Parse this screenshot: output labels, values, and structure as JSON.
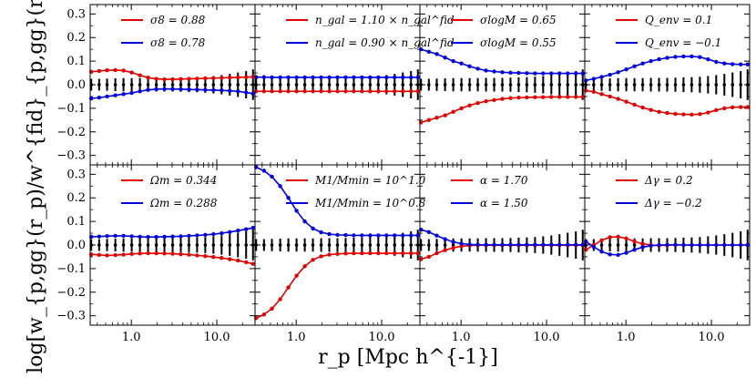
{
  "figure": {
    "ylabel": "log[w_{p,gg}(r_p)/w^{fid}_{p,gg}(r_p)]",
    "xlabel": "r_p [Mpc h^{-1}]"
  },
  "chart_data": {
    "type": "line",
    "layout": "2x4 grid of panels, shared axes",
    "xscale": "log",
    "xlim": [
      0.33,
      28
    ],
    "ylim": [
      -0.34,
      0.34
    ],
    "xticks": [
      1.0,
      10.0
    ],
    "xtick_labels": [
      "1.0",
      "10.0"
    ],
    "yticks": [
      0.3,
      0.2,
      0.1,
      0.0,
      -0.1,
      -0.2,
      -0.3
    ],
    "ytick_labels": [
      "0.3",
      "0.2",
      "0.1",
      "0.0",
      "−0.1",
      "−0.2",
      "−0.3"
    ],
    "colors": {
      "red": "#e00000",
      "blue": "#0000dd",
      "err": "#000000"
    },
    "rp": [
      0.34,
      0.42,
      0.52,
      0.65,
      0.81,
      1.01,
      1.26,
      1.57,
      1.96,
      2.44,
      3.04,
      3.79,
      4.72,
      5.88,
      7.33,
      9.13,
      11.38,
      14.18,
      17.67,
      22.02,
      26.5
    ],
    "errors": [
      0.025,
      0.025,
      0.026,
      0.027,
      0.028,
      0.028,
      0.028,
      0.028,
      0.029,
      0.029,
      0.029,
      0.03,
      0.031,
      0.032,
      0.034,
      0.037,
      0.041,
      0.046,
      0.052,
      0.058,
      0.065
    ],
    "panels": [
      {
        "id": "sigma8",
        "legend": [
          "σ8 = 0.88",
          "σ8 = 0.78"
        ],
        "series": [
          {
            "name": "σ8 = 0.88",
            "color": "red",
            "values": [
              0.055,
              0.058,
              0.061,
              0.062,
              0.06,
              0.052,
              0.04,
              0.03,
              0.025,
              0.023,
              0.023,
              0.024,
              0.025,
              0.026,
              0.027,
              0.028,
              0.029,
              0.03,
              0.031,
              0.032,
              0.033
            ]
          },
          {
            "name": "σ8 = 0.78",
            "color": "blue",
            "values": [
              -0.058,
              -0.055,
              -0.05,
              -0.045,
              -0.04,
              -0.035,
              -0.028,
              -0.022,
              -0.019,
              -0.018,
              -0.018,
              -0.019,
              -0.02,
              -0.021,
              -0.022,
              -0.023,
              -0.024,
              -0.026,
              -0.028,
              -0.033,
              -0.038
            ]
          }
        ]
      },
      {
        "id": "ngal",
        "legend": [
          "n_gal = 1.10 × n_gal^fid",
          "n_gal = 0.90 × n_gal^fid"
        ],
        "series": [
          {
            "name": "n_gal = 1.10 × n_gal^fid",
            "color": "red",
            "values": [
              -0.028,
              -0.028,
              -0.028,
              -0.028,
              -0.028,
              -0.028,
              -0.028,
              -0.028,
              -0.028,
              -0.028,
              -0.028,
              -0.028,
              -0.028,
              -0.028,
              -0.028,
              -0.028,
              -0.028,
              -0.028,
              -0.028,
              -0.028,
              -0.028
            ]
          },
          {
            "name": "n_gal = 0.90 × n_gal^fid",
            "color": "blue",
            "values": [
              0.032,
              0.032,
              0.031,
              0.031,
              0.031,
              0.031,
              0.031,
              0.031,
              0.031,
              0.031,
              0.031,
              0.031,
              0.031,
              0.031,
              0.031,
              0.031,
              0.031,
              0.031,
              0.031,
              0.031,
              0.031
            ]
          }
        ]
      },
      {
        "id": "sigmalogM",
        "legend": [
          "σlogM = 0.65",
          "σlogM = 0.55"
        ],
        "series": [
          {
            "name": "σlogM = 0.65",
            "color": "red",
            "values": [
              -0.16,
              -0.15,
              -0.14,
              -0.13,
              -0.115,
              -0.1,
              -0.088,
              -0.078,
              -0.07,
              -0.065,
              -0.06,
              -0.057,
              -0.055,
              -0.054,
              -0.053,
              -0.053,
              -0.052,
              -0.052,
              -0.052,
              -0.052,
              -0.052
            ]
          },
          {
            "name": "σlogM = 0.55",
            "color": "blue",
            "values": [
              0.15,
              0.14,
              0.13,
              0.115,
              0.1,
              0.09,
              0.078,
              0.068,
              0.06,
              0.056,
              0.053,
              0.051,
              0.05,
              0.049,
              0.048,
              0.048,
              0.048,
              0.048,
              0.048,
              0.048,
              0.048
            ]
          }
        ]
      },
      {
        "id": "Qenv",
        "legend": [
          "Q_env = 0.1",
          "Q_env = −0.1"
        ],
        "series": [
          {
            "name": "Q_env = 0.1",
            "color": "red",
            "values": [
              -0.025,
              -0.03,
              -0.04,
              -0.05,
              -0.06,
              -0.072,
              -0.085,
              -0.097,
              -0.107,
              -0.115,
              -0.12,
              -0.124,
              -0.126,
              -0.127,
              -0.125,
              -0.118,
              -0.108,
              -0.1,
              -0.096,
              -0.095,
              -0.095
            ]
          },
          {
            "name": "Q_env = −0.1",
            "color": "blue",
            "values": [
              0.018,
              0.025,
              0.033,
              0.042,
              0.053,
              0.065,
              0.078,
              0.09,
              0.1,
              0.108,
              0.114,
              0.118,
              0.12,
              0.12,
              0.117,
              0.108,
              0.097,
              0.09,
              0.087,
              0.086,
              0.086
            ]
          }
        ]
      },
      {
        "id": "Omegam",
        "legend": [
          "Ωm = 0.344",
          "Ωm = 0.288"
        ],
        "series": [
          {
            "name": "Ωm = 0.344",
            "color": "red",
            "values": [
              -0.04,
              -0.042,
              -0.044,
              -0.043,
              -0.041,
              -0.038,
              -0.036,
              -0.035,
              -0.035,
              -0.036,
              -0.037,
              -0.039,
              -0.041,
              -0.044,
              -0.047,
              -0.051,
              -0.055,
              -0.06,
              -0.066,
              -0.073,
              -0.08
            ]
          },
          {
            "name": "Ωm = 0.288",
            "color": "blue",
            "values": [
              0.035,
              0.036,
              0.038,
              0.039,
              0.039,
              0.037,
              0.035,
              0.034,
              0.034,
              0.035,
              0.036,
              0.037,
              0.039,
              0.041,
              0.043,
              0.046,
              0.05,
              0.055,
              0.061,
              0.067,
              0.073
            ]
          }
        ]
      },
      {
        "id": "M1",
        "legend": [
          "M1/Mmin = 10^1.0",
          "M1/Mmin = 10^0.8"
        ],
        "series": [
          {
            "name": "M1/Mmin = 10^1.0",
            "color": "red",
            "values": [
              -0.31,
              -0.295,
              -0.27,
              -0.23,
              -0.18,
              -0.13,
              -0.09,
              -0.063,
              -0.048,
              -0.041,
              -0.038,
              -0.036,
              -0.035,
              -0.035,
              -0.035,
              -0.035,
              -0.035,
              -0.035,
              -0.035,
              -0.035,
              -0.035
            ]
          },
          {
            "name": "M1/Mmin = 10^0.8",
            "color": "blue",
            "values": [
              0.33,
              0.315,
              0.29,
              0.25,
              0.2,
              0.145,
              0.1,
              0.07,
              0.054,
              0.046,
              0.043,
              0.042,
              0.041,
              0.041,
              0.041,
              0.041,
              0.041,
              0.041,
              0.041,
              0.041,
              0.041
            ]
          }
        ]
      },
      {
        "id": "alpha",
        "legend": [
          "α = 1.70",
          "α = 1.50"
        ],
        "series": [
          {
            "name": "α = 1.70",
            "color": "red",
            "values": [
              -0.06,
              -0.05,
              -0.035,
              -0.022,
              -0.012,
              -0.005,
              -0.002,
              -0.001,
              -0.001,
              -0.001,
              -0.001,
              -0.001,
              -0.001,
              -0.001,
              -0.001,
              -0.001,
              -0.001,
              -0.001,
              -0.001,
              -0.001,
              -0.001
            ]
          },
          {
            "name": "α = 1.50",
            "color": "blue",
            "values": [
              0.065,
              0.055,
              0.04,
              0.025,
              0.013,
              0.006,
              0.002,
              0.001,
              0.001,
              0.001,
              0.001,
              0.001,
              0.001,
              0.001,
              0.001,
              0.001,
              0.001,
              0.001,
              0.001,
              0.001,
              0.001
            ]
          }
        ]
      },
      {
        "id": "Deltagamma",
        "legend": [
          "Δγ = 0.2",
          "Δγ = −0.2"
        ],
        "series": [
          {
            "name": "Δγ = 0.2",
            "color": "red",
            "values": [
              -0.02,
              0.0,
              0.02,
              0.033,
              0.035,
              0.028,
              0.015,
              0.005,
              0.0,
              -0.002,
              -0.001,
              0.0,
              0.0,
              0.0,
              0.0,
              0.0,
              0.0,
              0.0,
              0.0,
              0.0,
              0.0
            ]
          },
          {
            "name": "Δγ = −0.2",
            "color": "blue",
            "values": [
              0.015,
              -0.008,
              -0.028,
              -0.04,
              -0.042,
              -0.033,
              -0.02,
              -0.009,
              -0.003,
              0.0,
              0.001,
              0.001,
              0.0,
              0.0,
              0.0,
              0.0,
              0.0,
              0.0,
              0.0,
              0.0,
              0.0
            ]
          }
        ]
      }
    ]
  }
}
